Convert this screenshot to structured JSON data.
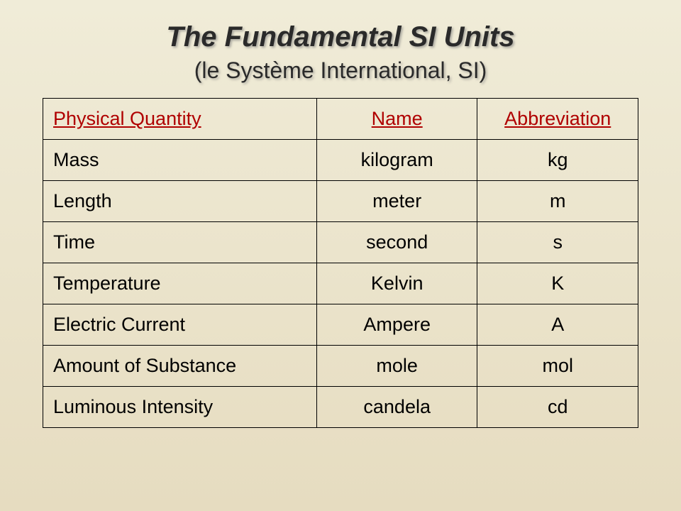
{
  "header": {
    "title": "The Fundamental SI Units",
    "subtitle": "(le Système International, SI)"
  },
  "table": {
    "type": "table",
    "background_color": "#efe9d3",
    "border_color": "#000000",
    "header_text_color": "#b00000",
    "body_text_color": "#000000",
    "font_family": "Comic Sans MS",
    "header_fontsize": 27,
    "body_fontsize": 27,
    "columns": [
      {
        "key": "quantity",
        "label": "Physical Quantity",
        "align": "left",
        "width_pct": 46
      },
      {
        "key": "name",
        "label": "Name",
        "align": "center",
        "width_pct": 27
      },
      {
        "key": "abbr",
        "label": "Abbreviation",
        "align": "center",
        "width_pct": 27
      }
    ],
    "rows": [
      {
        "quantity": "Mass",
        "name": "kilogram",
        "abbr": "kg"
      },
      {
        "quantity": "Length",
        "name": "meter",
        "abbr": "m"
      },
      {
        "quantity": "Time",
        "name": "second",
        "abbr": "s"
      },
      {
        "quantity": "Temperature",
        "name": "Kelvin",
        "abbr": "K"
      },
      {
        "quantity": "Electric Current",
        "name": "Ampere",
        "abbr": "A"
      },
      {
        "quantity": "Amount of Substance",
        "name": "mole",
        "abbr": "mol"
      },
      {
        "quantity": "Luminous Intensity",
        "name": "candela",
        "abbr": "cd"
      }
    ]
  },
  "styling": {
    "page_bg_gradient_top": "#f0ecd8",
    "page_bg_gradient_bottom": "#e6dcc0",
    "title_color": "#2a2a2a",
    "title_fontsize": 40,
    "subtitle_fontsize": 32,
    "title_shadow_color": "#888888"
  }
}
